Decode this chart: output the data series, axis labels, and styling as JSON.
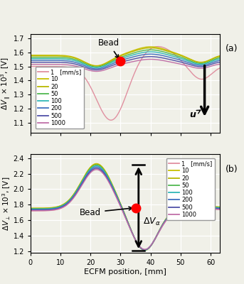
{
  "speeds": [
    1,
    10,
    20,
    50,
    100,
    200,
    500,
    1000
  ],
  "colors_a": [
    "#e090a0",
    "#c8c000",
    "#b8b800",
    "#50b850",
    "#30b8b8",
    "#4070c0",
    "#5050a8",
    "#c070a8"
  ],
  "colors_b": [
    "#e090a0",
    "#c8c000",
    "#b8b800",
    "#50b850",
    "#30b8b8",
    "#4070c0",
    "#5050a8",
    "#c070a8"
  ],
  "x_min": 0,
  "x_max": 63,
  "xlabel": "ECFM position, [mm]",
  "ylabel_a": "$\\Delta V_{\\parallel} \\times 10^3$, [V]",
  "ylabel_b": "$\\Delta V_{\\perp} \\times 10^3$, [V]",
  "ylim_a": [
    1.03,
    1.73
  ],
  "ylim_b": [
    1.18,
    2.45
  ],
  "yticks_a": [
    1.1,
    1.2,
    1.3,
    1.4,
    1.5,
    1.6,
    1.7
  ],
  "yticks_b": [
    1.2,
    1.4,
    1.6,
    1.8,
    2.0,
    2.2,
    2.4
  ],
  "background_color": "#f0f0e8",
  "grid_color": "#ffffff"
}
